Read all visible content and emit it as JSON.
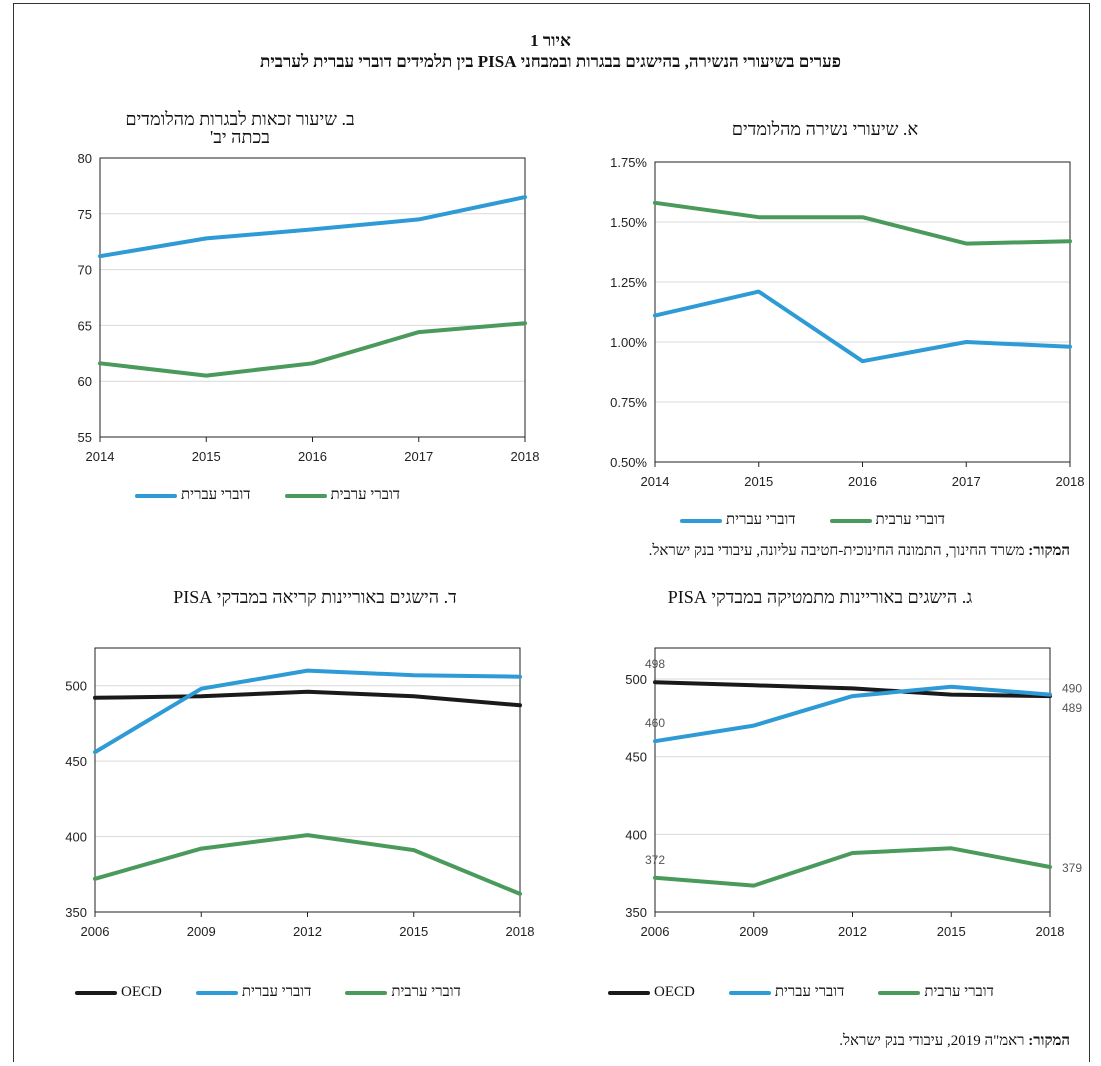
{
  "figure": {
    "number": "איור 1",
    "title": "פערים בשיעורי הנשירה, בהישגים בבגרות ובמבחני PISA  בין תלמידים דוברי עברית לערבית"
  },
  "sources": {
    "top_label": "המקור:",
    "top_text": " משרד החינוך, התמונה החינוכית-חטיבה עליונה, עיבודי בנק ישראל.",
    "bottom_label": "המקור:",
    "bottom_text": " ראמ\"ה 2019, עיבודי בנק ישראל."
  },
  "colors": {
    "hebrew": "#2E9BD6",
    "arabic": "#4A9A5C",
    "oecd": "#1a1a1a",
    "grid": "#d9d9d9"
  },
  "chart_data": [
    {
      "id": "a",
      "type": "line",
      "title": "א. שיעורי נשירה מהלומדים",
      "x": [
        "2014",
        "2015",
        "2016",
        "2017",
        "2018"
      ],
      "ylim": [
        0.005,
        0.0175
      ],
      "yticks": [
        "0.50%",
        "0.75%",
        "1.00%",
        "1.25%",
        "1.50%",
        "1.75%"
      ],
      "ytick_values": [
        0.005,
        0.0075,
        0.01,
        0.0125,
        0.015,
        0.0175
      ],
      "grid": true,
      "series": [
        {
          "name": "דוברי עברית",
          "color_key": "hebrew",
          "values": [
            0.0111,
            0.0121,
            0.0092,
            0.01,
            0.0098
          ]
        },
        {
          "name": "דוברי ערבית",
          "color_key": "arabic",
          "values": [
            0.0158,
            0.0152,
            0.0152,
            0.0141,
            0.0142
          ]
        }
      ],
      "legend": [
        "דוברי ערבית",
        "דוברי עברית"
      ]
    },
    {
      "id": "b",
      "type": "line",
      "title": "ב. שיעור זכאות לבגרות מהלומדים בכתה יב'",
      "x": [
        "2014",
        "2015",
        "2016",
        "2017",
        "2018"
      ],
      "ylim": [
        55,
        80
      ],
      "yticks": [
        "55",
        "60",
        "65",
        "70",
        "75",
        "80"
      ],
      "ytick_values": [
        55,
        60,
        65,
        70,
        75,
        80
      ],
      "grid": true,
      "series": [
        {
          "name": "דוברי עברית",
          "color_key": "hebrew",
          "values": [
            71.2,
            72.8,
            73.6,
            74.5,
            76.5
          ]
        },
        {
          "name": "דוברי ערבית",
          "color_key": "arabic",
          "values": [
            61.6,
            60.5,
            61.6,
            64.4,
            65.2
          ]
        }
      ],
      "legend": [
        "דוברי ערבית",
        "דוברי עברית"
      ]
    },
    {
      "id": "c",
      "type": "line",
      "title": "ג. הישגים באוריינות מתמטיקה במבדקי PISA",
      "x": [
        "2006",
        "2009",
        "2012",
        "2015",
        "2018"
      ],
      "ylim": [
        350,
        520
      ],
      "yticks": [
        "350",
        "400",
        "450",
        "500"
      ],
      "ytick_values": [
        350,
        400,
        450,
        500
      ],
      "grid": true,
      "series": [
        {
          "name": "OECD",
          "color_key": "oecd",
          "values": [
            498,
            496,
            494,
            490,
            489
          ]
        },
        {
          "name": "דוברי עברית",
          "color_key": "hebrew",
          "values": [
            460,
            470,
            489,
            495,
            490
          ]
        },
        {
          "name": "דוברי ערבית",
          "color_key": "arabic",
          "values": [
            372,
            367,
            388,
            391,
            379
          ]
        }
      ],
      "data_labels": [
        {
          "series": 0,
          "index": 0,
          "text": "498",
          "pos": "above"
        },
        {
          "series": 1,
          "index": 0,
          "text": "460",
          "pos": "above"
        },
        {
          "series": 2,
          "index": 0,
          "text": "372",
          "pos": "above"
        },
        {
          "series": 1,
          "index": 4,
          "text": "490",
          "pos": "right-up"
        },
        {
          "series": 0,
          "index": 4,
          "text": "489",
          "pos": "right-down"
        },
        {
          "series": 2,
          "index": 4,
          "text": "379",
          "pos": "right"
        }
      ],
      "legend": [
        "דוברי ערבית",
        "דוברי עברית",
        "OECD"
      ]
    },
    {
      "id": "d",
      "type": "line",
      "title": "ד. הישגים באוריינות קריאה במבדקי PISA",
      "x": [
        "2006",
        "2009",
        "2012",
        "2015",
        "2018"
      ],
      "ylim": [
        350,
        525
      ],
      "yticks": [
        "350",
        "400",
        "450",
        "500"
      ],
      "ytick_values": [
        350,
        400,
        450,
        500
      ],
      "grid": true,
      "series": [
        {
          "name": "OECD",
          "color_key": "oecd",
          "values": [
            492,
            493,
            496,
            493,
            487
          ]
        },
        {
          "name": "דוברי עברית",
          "color_key": "hebrew",
          "values": [
            456,
            498,
            510,
            507,
            506
          ]
        },
        {
          "name": "דוברי ערבית",
          "color_key": "arabic",
          "values": [
            372,
            392,
            401,
            391,
            362
          ]
        }
      ],
      "legend": [
        "דוברי ערבית",
        "דוברי עברית",
        "OECD"
      ]
    }
  ]
}
